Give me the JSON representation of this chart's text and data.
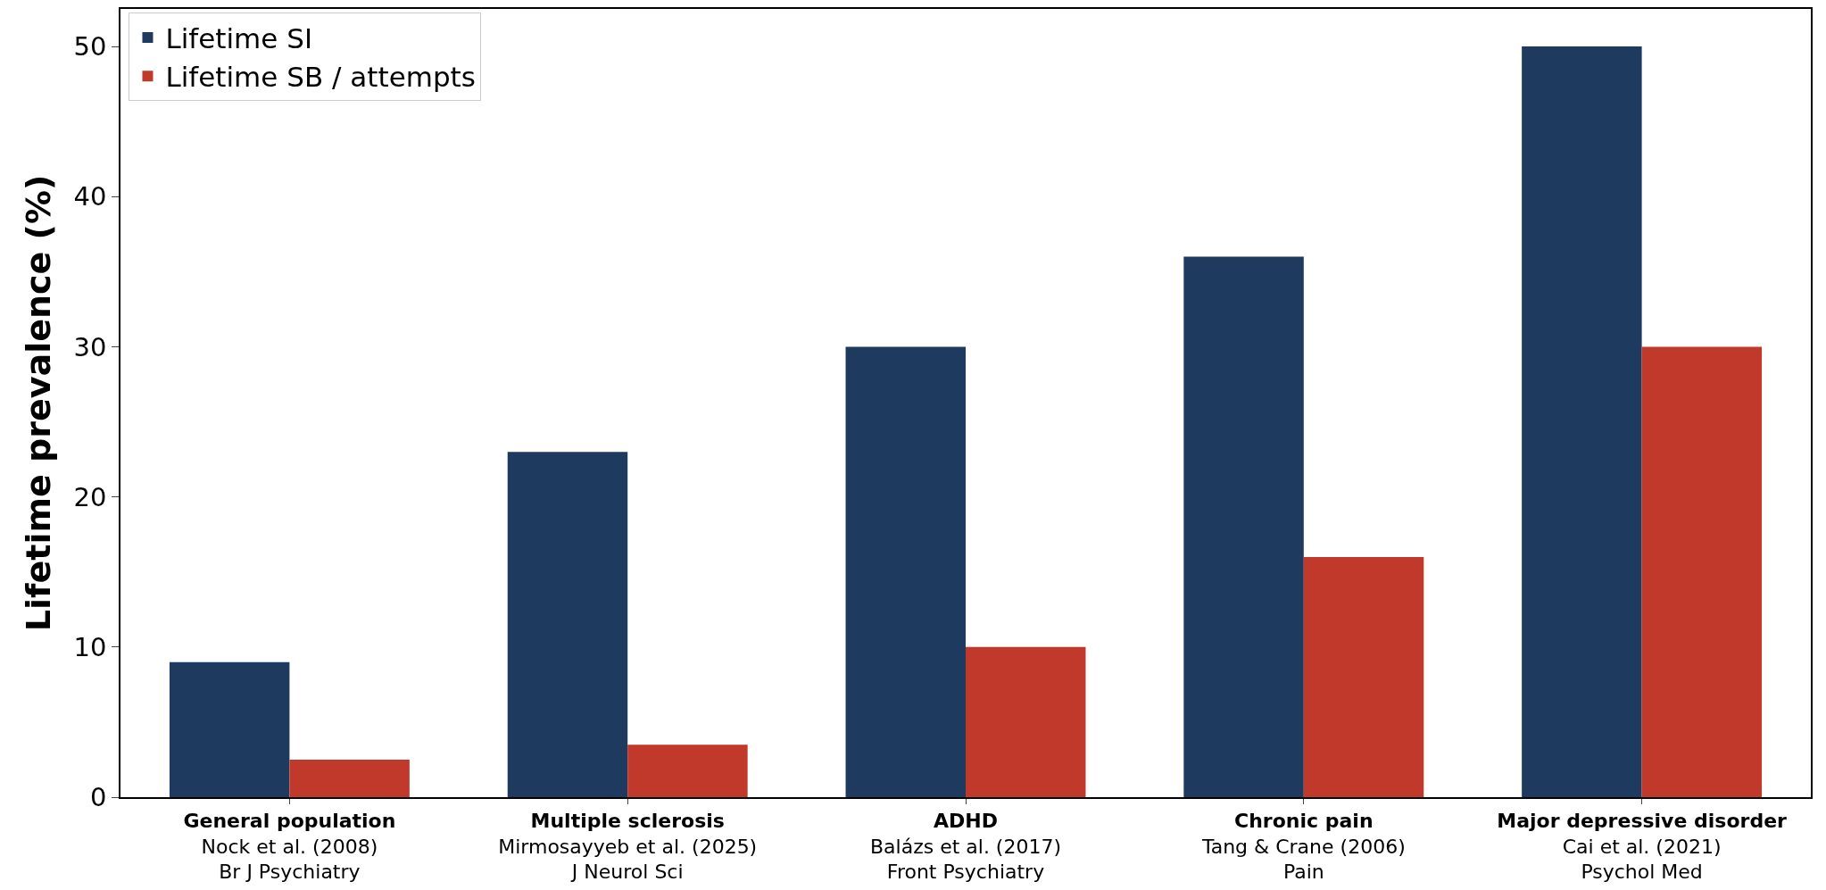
{
  "chart_data": {
    "type": "bar",
    "ylabel": "Lifetime prevalence (%)",
    "categories": [
      "General population\nNock et al. (2008)\nBr J Psychiatry",
      "Multiple sclerosis\nMirmosayyeb et al. (2025)\nJ Neurol Sci",
      "ADHD\nBalázs et al. (2017)\nFront Psychiatry",
      "Chronic pain\nTang & Crane (2006)\nPain",
      "Major depressive disorder\nCai et al. (2021)\nPsychol Med"
    ],
    "series": [
      {
        "name": "Lifetime SI",
        "color": "#1f3a5f",
        "values": [
          9,
          23,
          30,
          36,
          50
        ]
      },
      {
        "name": "Lifetime SB / attempts",
        "color": "#c0392b",
        "values": [
          2.5,
          3.5,
          10,
          16,
          30
        ]
      }
    ],
    "ylim": [
      0,
      52.5
    ],
    "yticks": [
      0,
      10,
      20,
      30,
      40,
      50
    ],
    "grid": false,
    "legend": "top left"
  }
}
